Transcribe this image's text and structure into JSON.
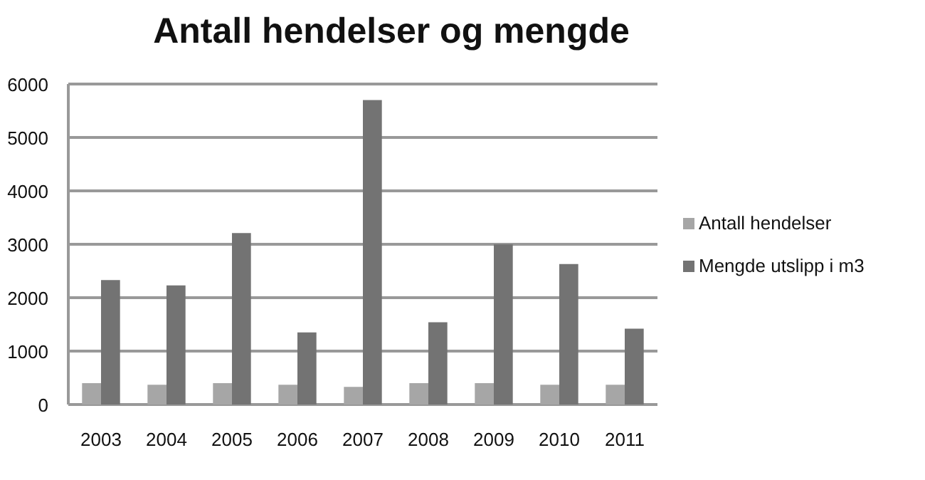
{
  "chart_data": {
    "type": "bar",
    "title": "Antall hendelser og mengde",
    "categories": [
      "2003",
      "2004",
      "2005",
      "2006",
      "2007",
      "2008",
      "2009",
      "2010",
      "2011"
    ],
    "series": [
      {
        "name": "Antall hendelser",
        "color": "#a6a6a6",
        "values": [
          400,
          370,
          400,
          370,
          330,
          400,
          400,
          370,
          370
        ]
      },
      {
        "name": "Mengde utslipp  i m3",
        "color": "#737373",
        "values": [
          2330,
          2230,
          3210,
          1350,
          5700,
          1540,
          3000,
          2630,
          1420
        ]
      }
    ],
    "ylim": [
      0,
      6000
    ],
    "yticks": [
      0,
      1000,
      2000,
      3000,
      4000,
      5000,
      6000
    ],
    "grid": "y",
    "legend": "right"
  }
}
